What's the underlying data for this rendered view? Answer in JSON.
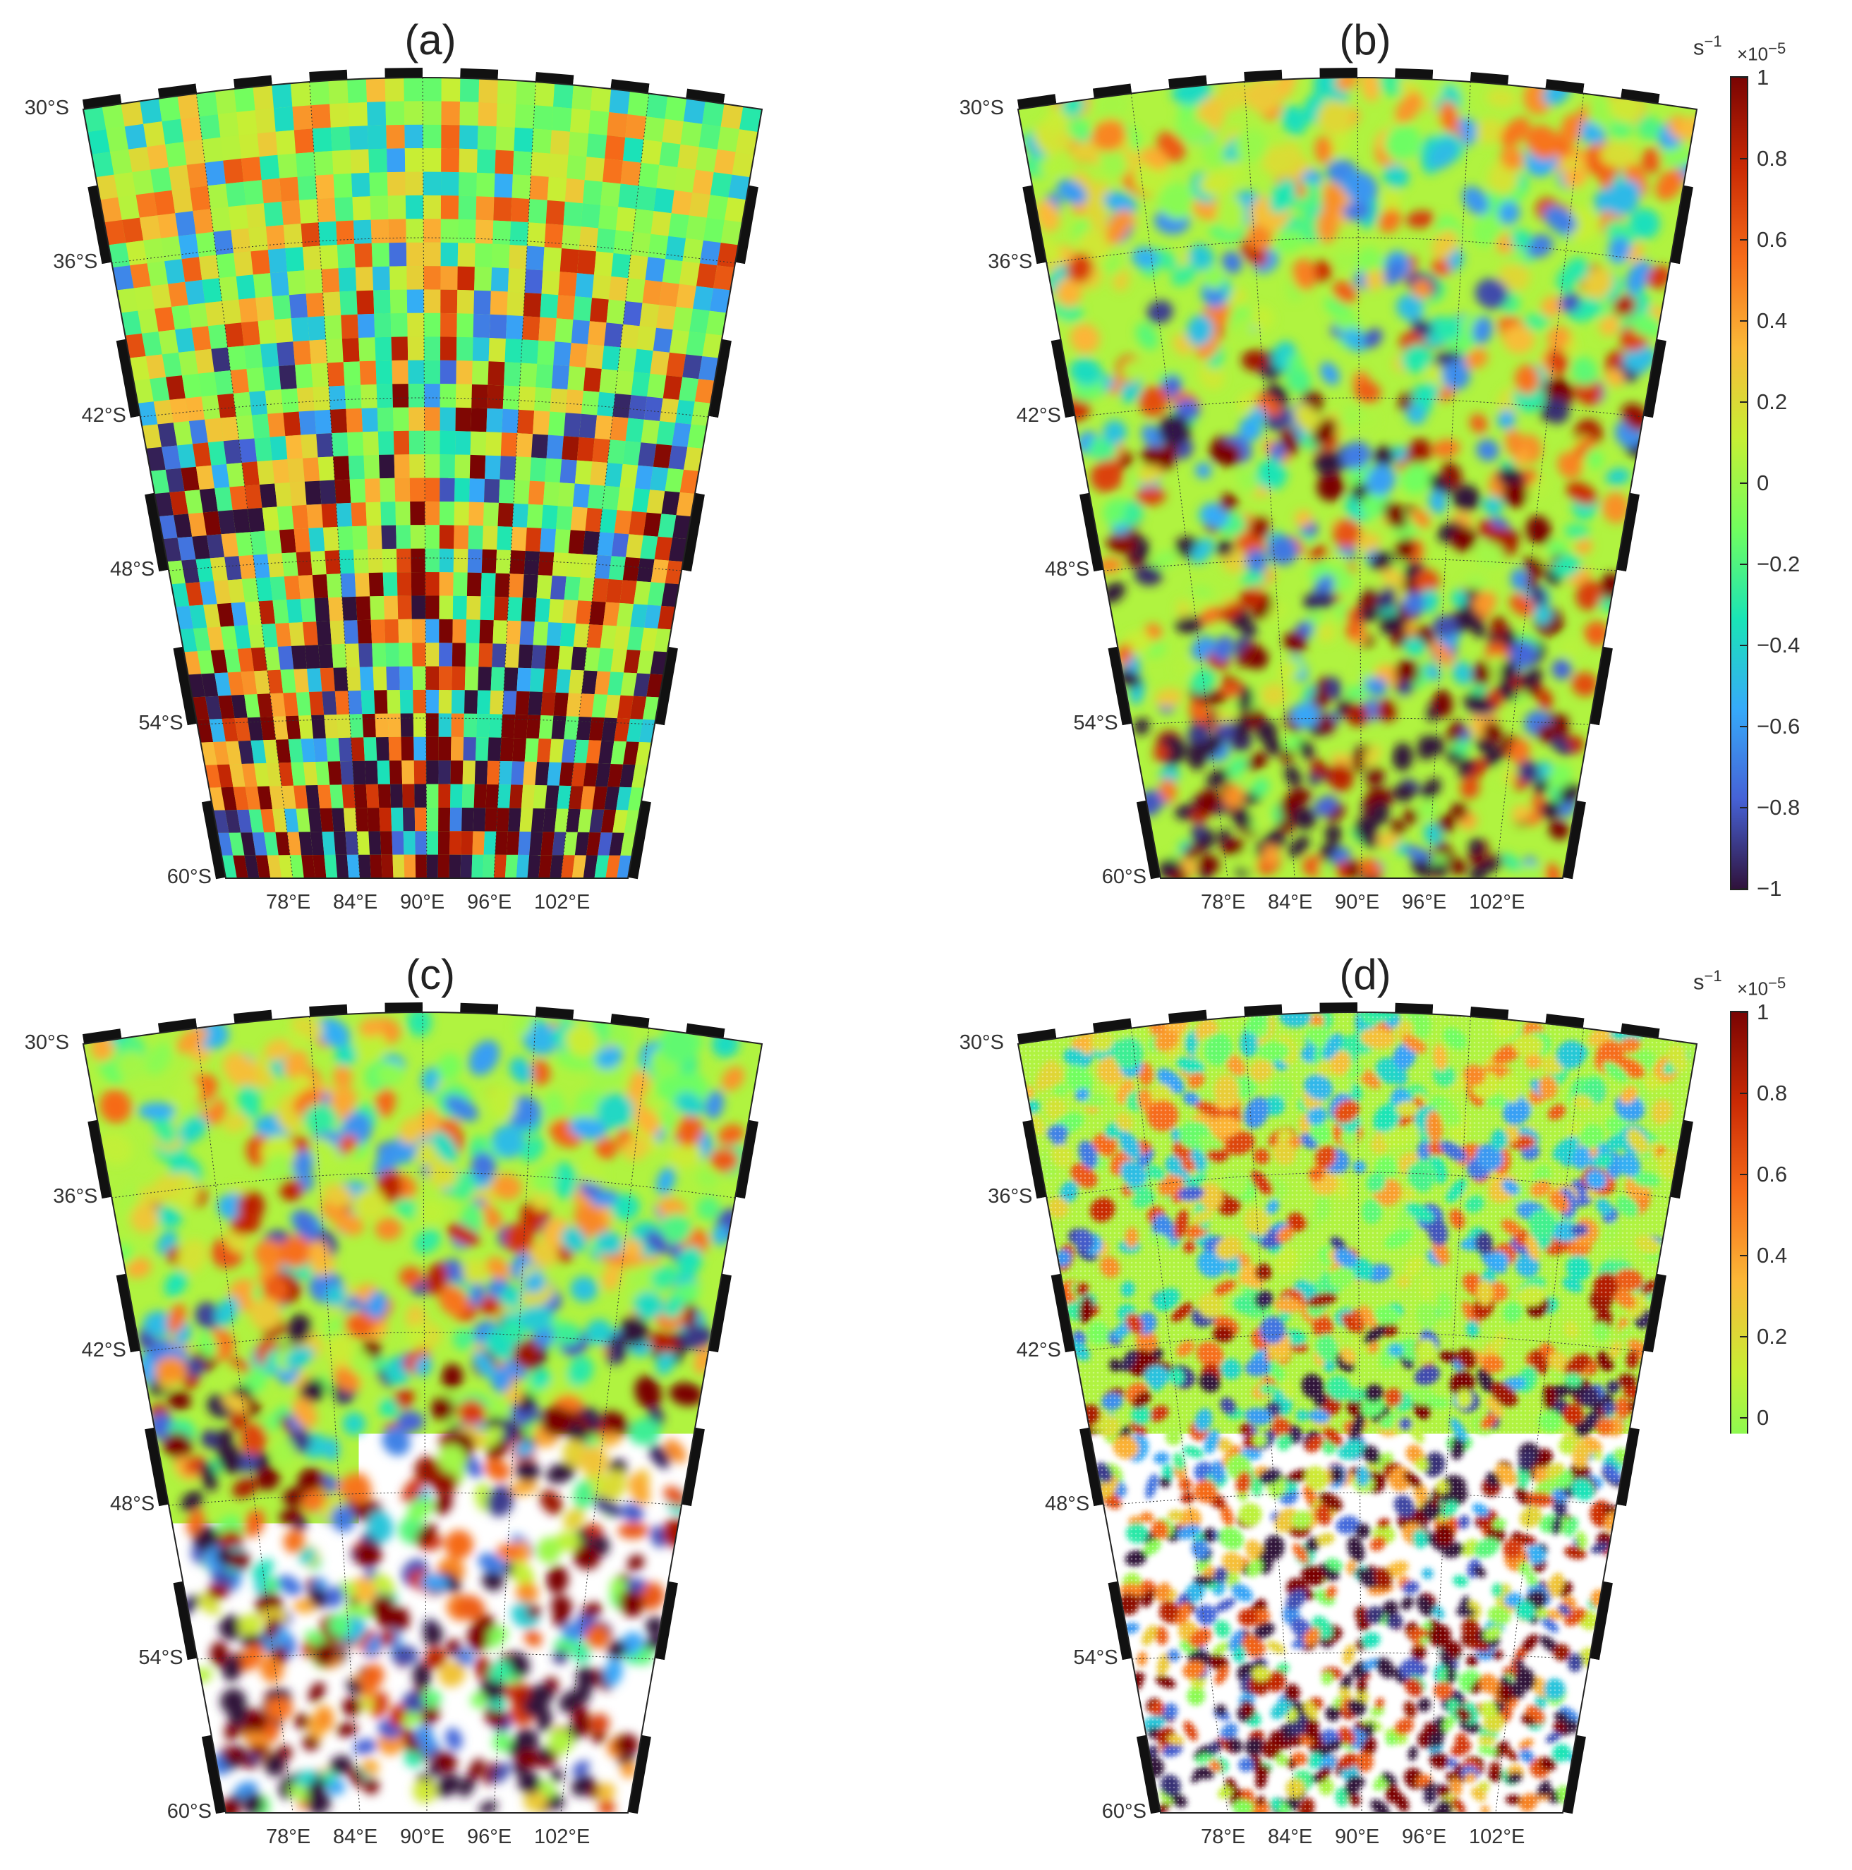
{
  "panels": [
    {
      "id": "a",
      "title": "(a)",
      "style": "blocks"
    },
    {
      "id": "b",
      "title": "(b)",
      "style": "smooth"
    },
    {
      "id": "c",
      "title": "(c)",
      "style": "smooth"
    },
    {
      "id": "d",
      "title": "(d)",
      "style": "speckled"
    }
  ],
  "map": {
    "lat_labels": [
      "30°S",
      "36°S",
      "42°S",
      "48°S",
      "54°S",
      "60°S"
    ],
    "lon_labels": [
      "78°E",
      "84°E",
      "90°E",
      "96°E",
      "102°E"
    ],
    "lat_range": [
      -60,
      -30
    ],
    "lon_range": [
      72,
      108
    ]
  },
  "colorbar": {
    "unit_base": "s",
    "unit_exp": "−1",
    "multiplier_base": "×10",
    "multiplier_exp": "−5",
    "ticks": [
      "1",
      "0.8",
      "0.6",
      "0.4",
      "0.2",
      "0",
      "−0.2",
      "−0.4",
      "−0.6",
      "−0.8",
      "−1"
    ],
    "range": [
      -1,
      1
    ],
    "colormap": [
      "#30123b",
      "#4662d7",
      "#36aaf9",
      "#1ae4b6",
      "#72fe5e",
      "#c7ef34",
      "#fbb938",
      "#f66b19",
      "#ca2a04",
      "#7a0403"
    ]
  }
}
